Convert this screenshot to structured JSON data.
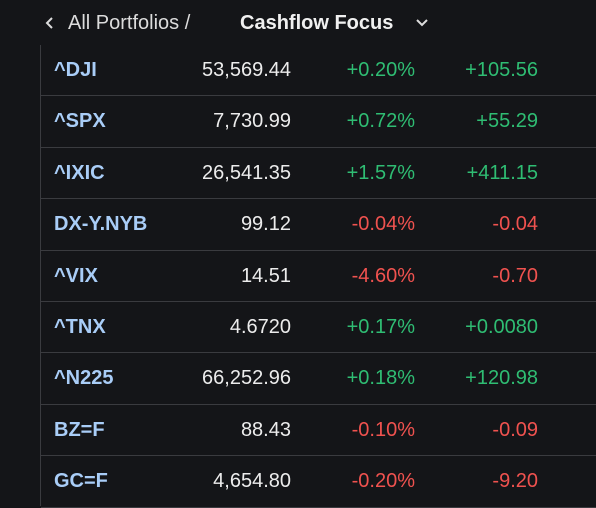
{
  "header": {
    "breadcrumb": "All Portfolios /",
    "title": "Cashflow Focus"
  },
  "table": {
    "rows": [
      [
        "^DJI",
        "53,569.44",
        "+0.20%",
        "+105.56"
      ],
      [
        "^SPX",
        "7,730.99",
        "+0.72%",
        "+55.29"
      ],
      [
        "^IXIC",
        "26,541.35",
        "+1.57%",
        "+411.15"
      ],
      [
        "DX-Y.NYB",
        "99.12",
        "-0.04%",
        "-0.04"
      ],
      [
        "^VIX",
        "14.51",
        "-4.60%",
        "-0.70"
      ],
      [
        "^TNX",
        "4.6720",
        "+0.17%",
        "+0.0080"
      ],
      [
        "^N225",
        "66,252.96",
        "+0.18%",
        "+120.98"
      ],
      [
        "BZ=F",
        "88.43",
        "-0.10%",
        "-0.09"
      ],
      [
        "GC=F",
        "4,654.80",
        "-0.20%",
        "-9.20"
      ]
    ]
  }
}
